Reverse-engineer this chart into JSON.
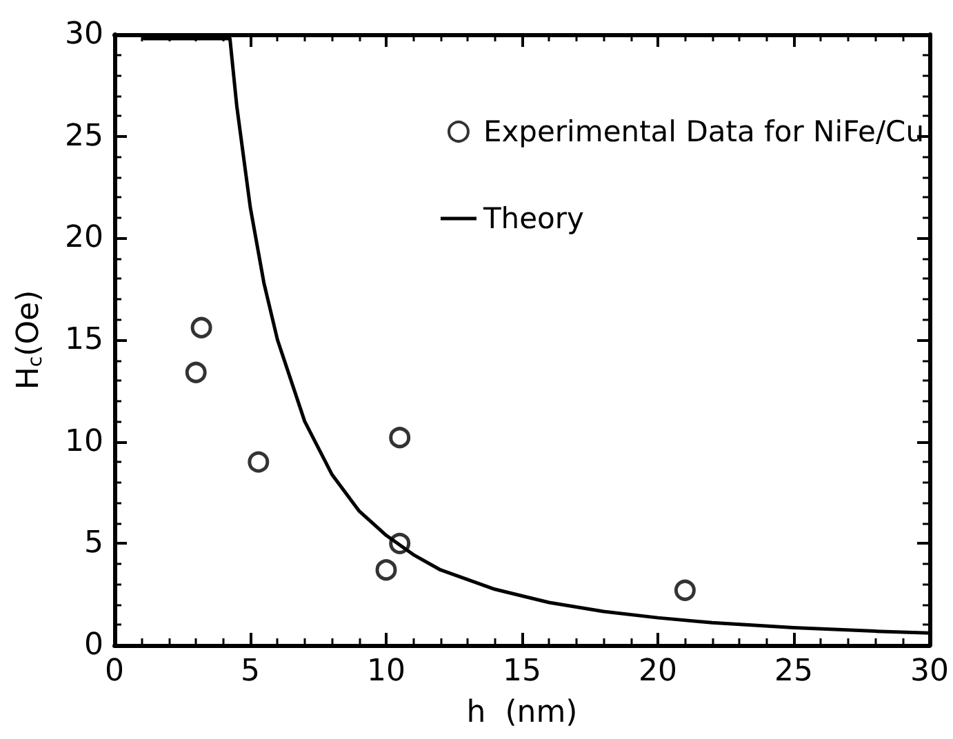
{
  "chart_data": {
    "type": "scatter",
    "xlabel": "h  (nm)",
    "ylabel": "H$_{c}$(Oe)",
    "xlim": [
      0,
      30
    ],
    "xticks": [
      0,
      5,
      10,
      15,
      20,
      25,
      30
    ],
    "ylim": [
      0,
      30
    ],
    "yticks": [
      0,
      5,
      10,
      15,
      20,
      25,
      30
    ],
    "grid": false,
    "legend": "top right",
    "series": [
      {
        "name": "Experimental Data for NiFe/Cu",
        "marker": "circle",
        "color": "#000000",
        "x": [
          3.0,
          3.2,
          5.3,
          10.0,
          10.5,
          10.5,
          21.0
        ],
        "values": [
          13.4,
          15.6,
          9.0,
          3.7,
          5.0,
          10.2,
          2.7
        ]
      },
      {
        "name": "Theory",
        "type": "line",
        "marker": "none",
        "line_style": "solid",
        "color": "#000000",
        "x": [
          1.1,
          4.25,
          4.5,
          5,
          5.5,
          6,
          7,
          8,
          9,
          10,
          11,
          12,
          14,
          16,
          18,
          20,
          22,
          25,
          28,
          30
        ],
        "values": [
          29.8,
          29.8,
          26.5,
          21.5,
          17.8,
          15,
          11,
          8.4,
          6.6,
          5.4,
          4.45,
          3.7,
          2.75,
          2.1,
          1.66,
          1.35,
          1.11,
          0.86,
          0.69,
          0.6
        ]
      }
    ]
  }
}
